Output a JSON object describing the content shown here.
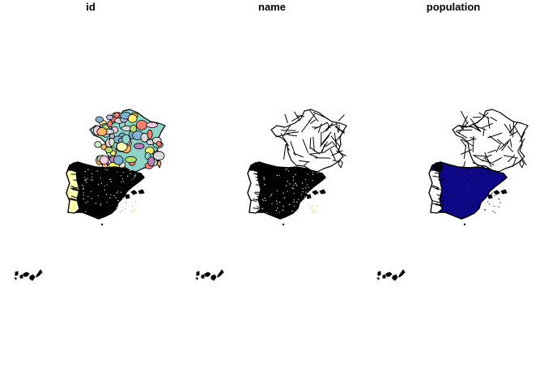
{
  "panels": [
    {
      "title": "id",
      "fill": "categorical"
    },
    {
      "title": "name",
      "fill": "white"
    },
    {
      "title": "population",
      "fill": "sequential"
    }
  ],
  "colors": {
    "border": "#000000",
    "background": "#ffffff",
    "palette": [
      "#8dd3c7",
      "#ffffb3",
      "#bebada",
      "#fb8072",
      "#80b1d3",
      "#fdb462",
      "#b3de69",
      "#fccde5",
      "#d9d9d9",
      "#bc80bd",
      "#ccebc5",
      "#ffed6f"
    ],
    "population_low": "#0d0887",
    "population_high": "#000000"
  }
}
